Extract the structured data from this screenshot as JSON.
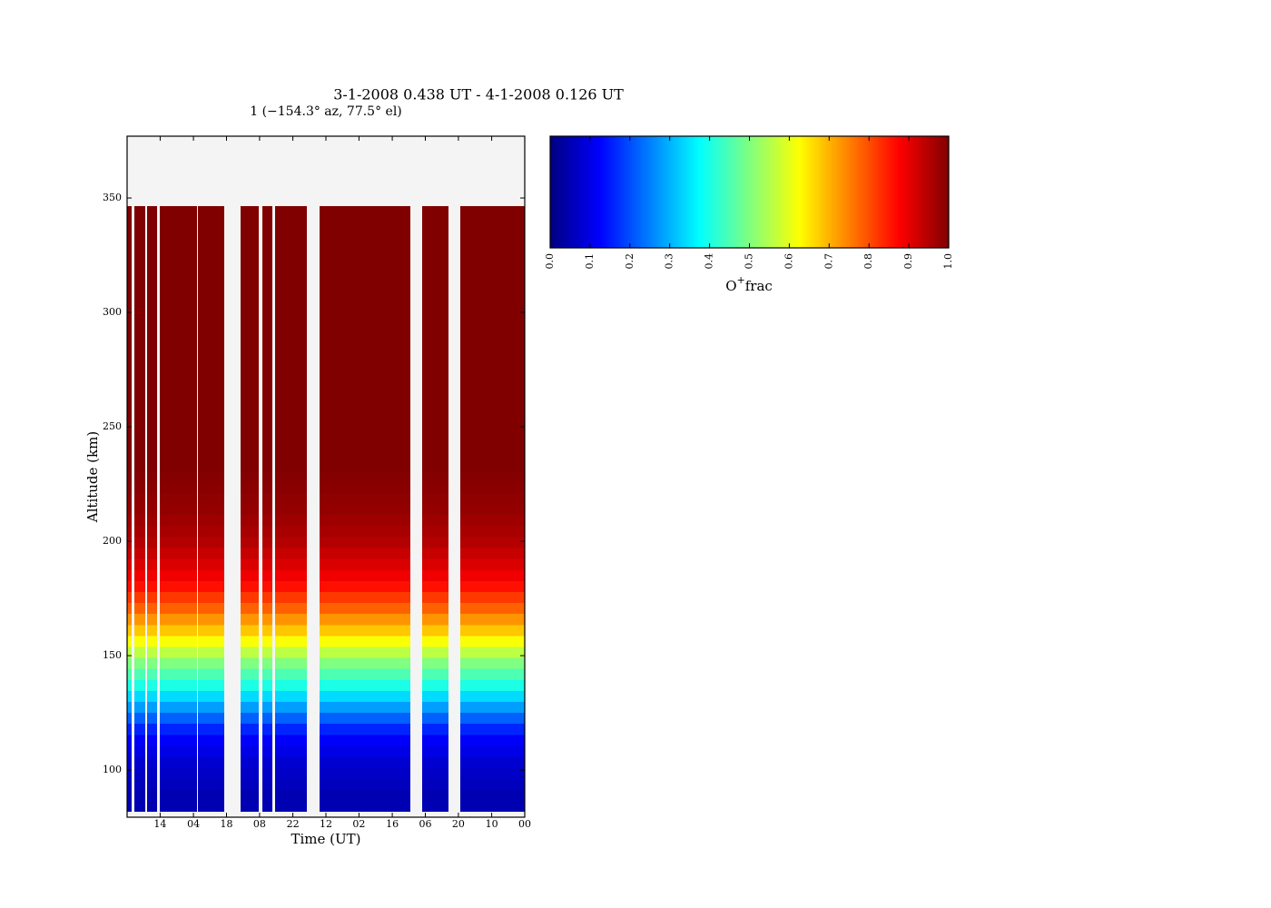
{
  "chart_data": {
    "type": "heatmap",
    "title": "3-1-2008 0.438 UT - 4-1-2008 0.126 UT",
    "subtitle": "1 (−154.3° az, 77.5° el)",
    "x_label": "Time (UT)",
    "y_label": "Altitude (km)",
    "colorbar_label": {
      "base": "O",
      "sup": "+",
      "rest": "frac"
    },
    "cmap": "jet",
    "background": "#f4f4f4",
    "xlim": [
      0,
      172
    ],
    "xticks": [
      {
        "value": 14.3,
        "label": "14"
      },
      {
        "value": 28.7,
        "label": "04"
      },
      {
        "value": 43,
        "label": "18"
      },
      {
        "value": 57.3,
        "label": "08"
      },
      {
        "value": 71.7,
        "label": "22"
      },
      {
        "value": 86,
        "label": "12"
      },
      {
        "value": 100.3,
        "label": "02"
      },
      {
        "value": 114.7,
        "label": "16"
      },
      {
        "value": 129,
        "label": "06"
      },
      {
        "value": 143.3,
        "label": "20"
      },
      {
        "value": 157.7,
        "label": "10"
      },
      {
        "value": 172,
        "label": "00"
      }
    ],
    "ylim": [
      79.4,
      377
    ],
    "yticks": [
      100,
      150,
      200,
      250,
      300,
      350
    ],
    "segments": [
      [
        0,
        2.0
      ],
      [
        3.1,
        7.9
      ],
      [
        8.6,
        13.0
      ],
      [
        14.1,
        30.2
      ],
      [
        30.6,
        42.0
      ],
      [
        49.1,
        56.9
      ],
      [
        58.5,
        62.8
      ],
      [
        64.0,
        77.7
      ],
      [
        83.2,
        122.5
      ],
      [
        127.6,
        139.0
      ],
      [
        144.1,
        172
      ]
    ],
    "y_edges": [
      82,
      86.8,
      91.6,
      96.4,
      101.2,
      106,
      110.8,
      115.6,
      120.4,
      125.2,
      130,
      134.8,
      139.6,
      144.4,
      149.2,
      154,
      158.8,
      163.6,
      168.4,
      173.2,
      178,
      182.8,
      187.6,
      192.4,
      197.2,
      202,
      206.8,
      211.6,
      216.4,
      221.2,
      226,
      230.8,
      346.4
    ],
    "z": [
      0.05,
      0.05,
      0.06,
      0.07,
      0.08,
      0.1,
      0.12,
      0.16,
      0.22,
      0.28,
      0.34,
      0.4,
      0.45,
      0.5,
      0.56,
      0.62,
      0.68,
      0.73,
      0.78,
      0.82,
      0.86,
      0.89,
      0.91,
      0.93,
      0.95,
      0.96,
      0.97,
      0.98,
      0.985,
      0.99,
      0.995,
      1.0
    ],
    "clim": [
      0,
      1
    ],
    "cticks": [
      {
        "value": 0,
        "label": "0.0"
      },
      {
        "value": 0.1,
        "label": "0.1"
      },
      {
        "value": 0.2,
        "label": "0.2"
      },
      {
        "value": 0.3,
        "label": "0.3"
      },
      {
        "value": 0.4,
        "label": "0.4"
      },
      {
        "value": 0.5,
        "label": "0.5"
      },
      {
        "value": 0.6,
        "label": "0.6"
      },
      {
        "value": 0.7,
        "label": "0.7"
      },
      {
        "value": 0.8,
        "label": "0.8"
      },
      {
        "value": 0.9,
        "label": "0.9"
      },
      {
        "value": 1,
        "label": "1.0"
      }
    ]
  }
}
